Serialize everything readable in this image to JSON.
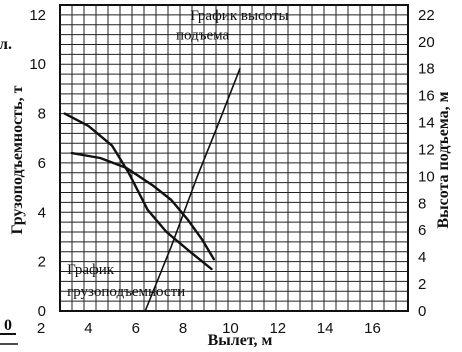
{
  "chart_data": {
    "type": "line",
    "xlabel": "Вылет, м",
    "ylabel_left": "Грузоподъемность, т",
    "ylabel_right": "Высота подъема, м",
    "xlim": [
      2,
      16
    ],
    "ylim_left": [
      0,
      12
    ],
    "ylim_right": [
      0,
      22
    ],
    "x_ticks": [
      "2",
      "4",
      "6",
      "8",
      "10",
      "12",
      "14",
      "16"
    ],
    "y_ticks_left": [
      "0",
      "2",
      "4",
      "6",
      "8",
      "10",
      "12"
    ],
    "y_ticks_right": [
      "0",
      "2",
      "4",
      "6",
      "8",
      "10",
      "12",
      "14",
      "16",
      "18",
      "20",
      "22"
    ],
    "grid": true,
    "series": [
      {
        "axis": "left",
        "points": [
          [
            3.0,
            8.0
          ],
          [
            4.0,
            7.5
          ],
          [
            5.0,
            6.7
          ],
          [
            5.7,
            5.6
          ],
          [
            6.5,
            4.1
          ],
          [
            7.3,
            3.2
          ],
          [
            8.3,
            2.4
          ],
          [
            9.2,
            1.7
          ]
        ]
      },
      {
        "axis": "left",
        "points": [
          [
            3.3,
            6.4
          ],
          [
            4.5,
            6.2
          ],
          [
            5.6,
            5.8
          ],
          [
            6.7,
            5.1
          ],
          [
            7.5,
            4.5
          ],
          [
            8.2,
            3.7
          ],
          [
            8.8,
            2.9
          ],
          [
            9.3,
            2.1
          ]
        ]
      },
      {
        "axis": "right",
        "points": [
          [
            6.4,
            0.0
          ],
          [
            7.5,
            4.8
          ],
          [
            8.6,
            10.0
          ],
          [
            9.4,
            13.5
          ],
          [
            10.4,
            18.0
          ]
        ]
      }
    ],
    "annotations": [
      {
        "text": "График высоты",
        "x": 8.3,
        "y": 11.8
      },
      {
        "text": "подъема",
        "x": 7.7,
        "y": 11.0
      },
      {
        "text": "График",
        "x": 3.1,
        "y": 1.5
      },
      {
        "text": "грузоподъемности",
        "x": 3.1,
        "y": 0.6
      }
    ]
  },
  "edge_text": {
    "top_left": "л.",
    "bottom_left": "0"
  },
  "colors": {
    "ink": "#111111",
    "grid": "#222222",
    "background": "#ffffff"
  }
}
